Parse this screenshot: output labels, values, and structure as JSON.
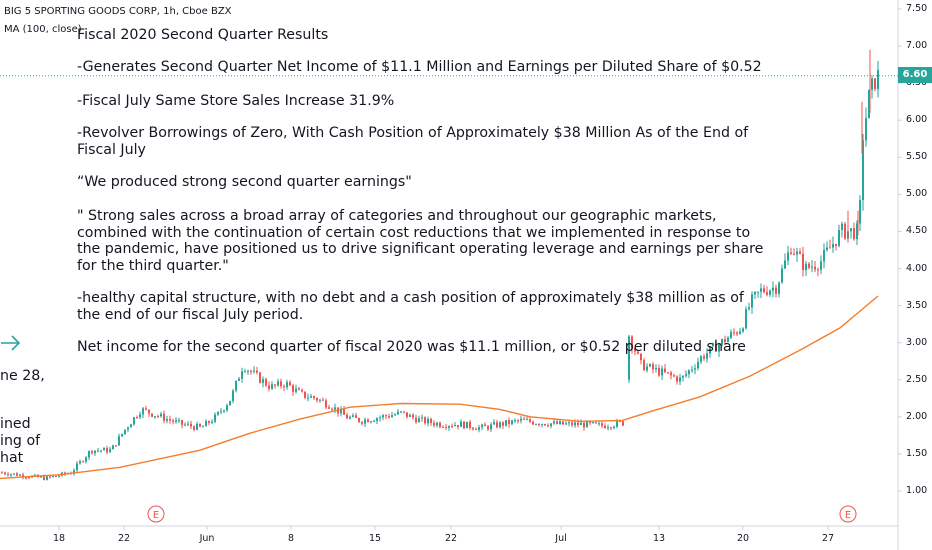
{
  "header": {
    "symbol_line": "BIG 5 SPORTING GOODS CORP, 1h, Cboe BZX",
    "indicator_line": "MA (100, close)"
  },
  "annotation": {
    "title": "Fiscal 2020 Second Quarter Results",
    "p1": "-Generates Second Quarter Net Income of $11.1 Million and Earnings per Diluted Share of $0.52",
    "p2": "-Fiscal July Same Store Sales Increase 31.9%",
    "p3": "-Revolver Borrowings of Zero, With Cash Position of Approximately $38 Million As of the End of Fiscal July",
    "p4": "“We produced strong second quarter earnings\"",
    "p5": "\" Strong sales across a broad array of categories and throughout our geographic markets, combined with the continuation of certain cost reductions that we implemented in response to the pandemic, have positioned us to drive significant operating leverage and earnings per share for the third quarter.\"",
    "p6": "-healthy capital structure, with no debt and a cash position of approximately $38 million as of the end of our fiscal July period.",
    "p7": "Net income for the second quarter of fiscal 2020 was $11.1 million, or $0.52 per diluted share"
  },
  "left_fragments": {
    "f1": "ne 28,",
    "f2": "ined",
    "f3": "ing of",
    "f4": "hat"
  },
  "price_badge": "6.60",
  "earnings_marker": "E",
  "colors": {
    "up": "#26a69a",
    "down": "#ef5350",
    "ma": "#f57c2c",
    "price_line": "#26a69a",
    "arrow": "#26a69a"
  },
  "chart_data": {
    "type": "candlestick",
    "title": "BIG 5 SPORTING GOODS CORP, 1h, Cboe BZX",
    "xlabel": "",
    "ylabel": "",
    "x_ticks": [
      "18",
      "22",
      "Jun",
      "8",
      "15",
      "22",
      "Jul",
      "13",
      "20",
      "27"
    ],
    "y_ticks": [
      "1.00",
      "1.50",
      "2.00",
      "2.50",
      "3.00",
      "3.50",
      "4.00",
      "4.50",
      "5.00",
      "5.50",
      "6.00",
      "6.50",
      "7.00",
      "7.50"
    ],
    "ylim": [
      0.6,
      7.6
    ],
    "last_price": 6.6,
    "grid": false,
    "price_anchors": [
      [
        0,
        1.25
      ],
      [
        45,
        1.17
      ],
      [
        70,
        1.25
      ],
      [
        90,
        1.55
      ],
      [
        110,
        1.55
      ],
      [
        125,
        1.85
      ],
      [
        140,
        2.1
      ],
      [
        160,
        2.0
      ],
      [
        180,
        1.9
      ],
      [
        200,
        1.85
      ],
      [
        215,
        2.0
      ],
      [
        230,
        2.25
      ],
      [
        242,
        2.7
      ],
      [
        255,
        2.55
      ],
      [
        270,
        2.4
      ],
      [
        285,
        2.45
      ],
      [
        300,
        2.3
      ],
      [
        315,
        2.25
      ],
      [
        330,
        2.15
      ],
      [
        345,
        2.0
      ],
      [
        360,
        1.95
      ],
      [
        380,
        2.0
      ],
      [
        400,
        2.05
      ],
      [
        420,
        1.95
      ],
      [
        440,
        1.9
      ],
      [
        460,
        1.9
      ],
      [
        480,
        1.85
      ],
      [
        500,
        1.9
      ],
      [
        520,
        1.95
      ],
      [
        540,
        1.92
      ],
      [
        560,
        1.9
      ],
      [
        580,
        1.9
      ],
      [
        600,
        1.88
      ],
      [
        622,
        1.92
      ],
      [
        628,
        3.1
      ],
      [
        640,
        2.7
      ],
      [
        660,
        2.6
      ],
      [
        680,
        2.5
      ],
      [
        700,
        2.8
      ],
      [
        720,
        3.0
      ],
      [
        740,
        3.2
      ],
      [
        750,
        3.55
      ],
      [
        760,
        3.7
      ],
      [
        775,
        3.75
      ],
      [
        790,
        4.3
      ],
      [
        805,
        4.0
      ],
      [
        820,
        4.1
      ],
      [
        840,
        4.5
      ],
      [
        858,
        4.5
      ],
      [
        862,
        5.8
      ],
      [
        868,
        6.3
      ],
      [
        874,
        6.55
      ],
      [
        878,
        6.6
      ]
    ],
    "ma_series": {
      "name": "MA (100, close)",
      "points": [
        [
          0,
          1.17
        ],
        [
          60,
          1.22
        ],
        [
          120,
          1.32
        ],
        [
          200,
          1.55
        ],
        [
          250,
          1.78
        ],
        [
          300,
          1.97
        ],
        [
          350,
          2.13
        ],
        [
          400,
          2.18
        ],
        [
          460,
          2.17
        ],
        [
          500,
          2.1
        ],
        [
          530,
          2.0
        ],
        [
          580,
          1.94
        ],
        [
          622,
          1.95
        ],
        [
          650,
          2.07
        ],
        [
          700,
          2.27
        ],
        [
          750,
          2.55
        ],
        [
          800,
          2.9
        ],
        [
          840,
          3.2
        ],
        [
          878,
          3.63
        ]
      ]
    },
    "earnings_events": [
      "E",
      "E"
    ]
  }
}
